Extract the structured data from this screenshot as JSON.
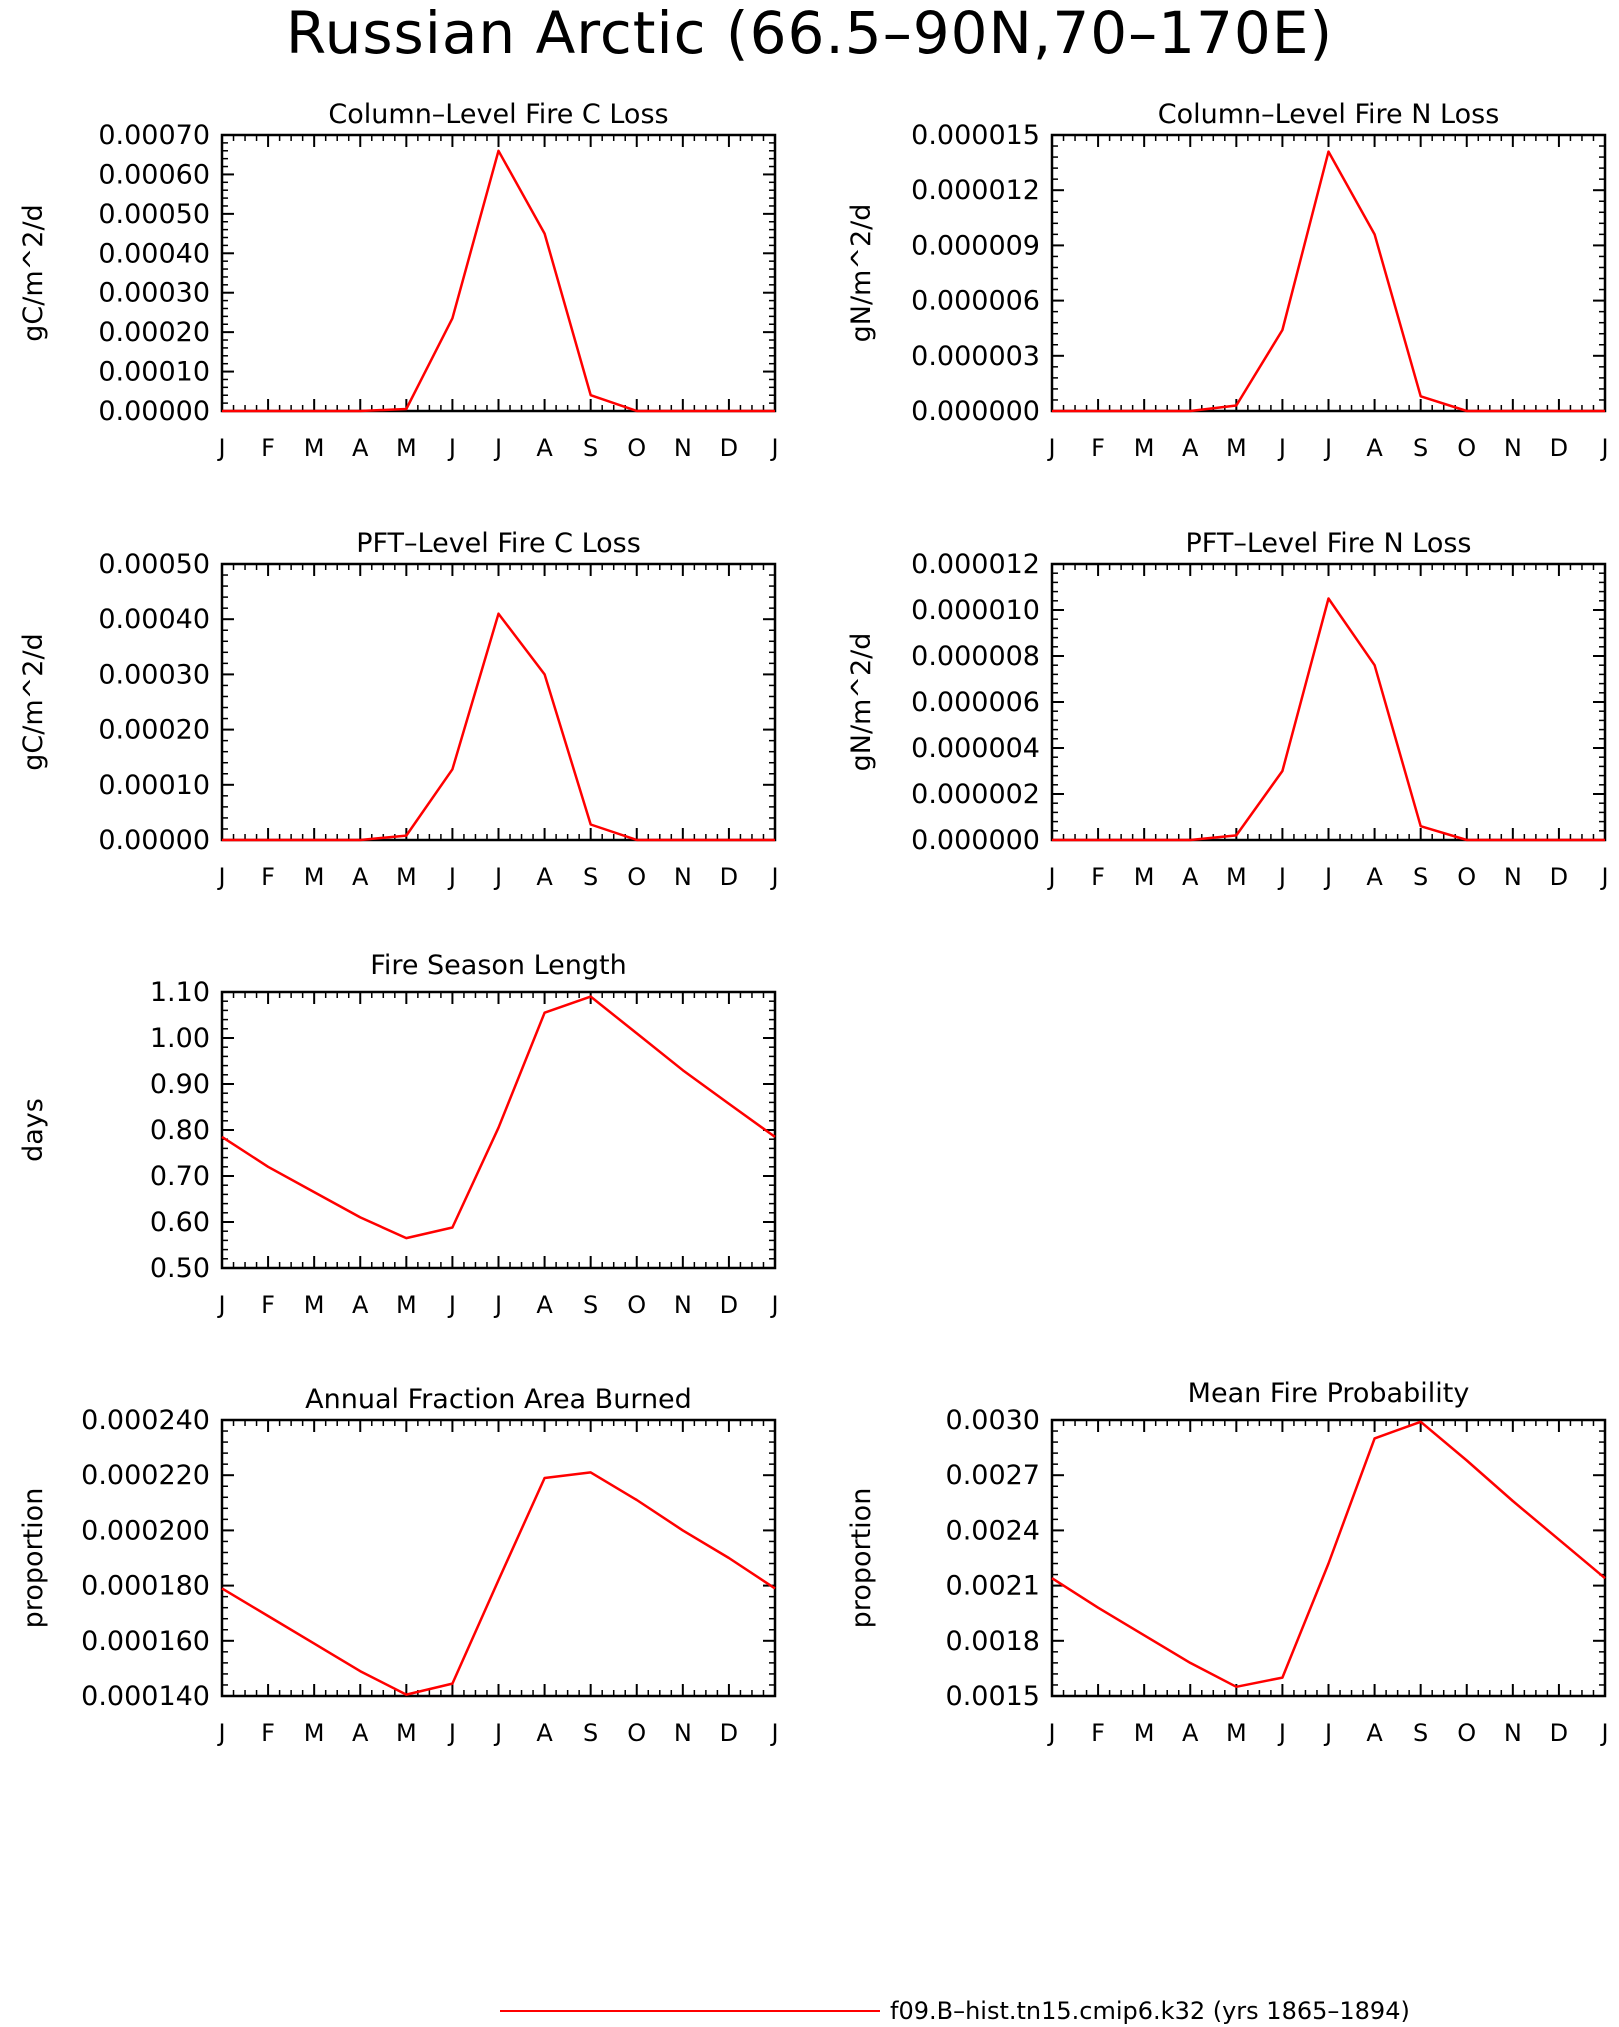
{
  "title": "Russian Arctic (66.5–90N,70–170E)",
  "legend": {
    "label": "f09.B–hist.tn15.cmip6.k32 (yrs 1865–1894)",
    "color": "#ff0000"
  },
  "chart_data": [
    {
      "type": "line",
      "title": "Column–Level Fire C Loss",
      "ylabel": "gC/m^2/d",
      "categories": [
        "J",
        "F",
        "M",
        "A",
        "M",
        "J",
        "J",
        "A",
        "S",
        "O",
        "N",
        "D",
        "J"
      ],
      "yticks": [
        "0.00000",
        "0.00010",
        "0.00020",
        "0.00030",
        "0.00040",
        "0.00050",
        "0.00060",
        "0.00070"
      ],
      "ylim": [
        0,
        0.0007
      ],
      "series": [
        {
          "color": "#ff0000",
          "values": [
            0,
            0,
            0,
            0,
            5e-06,
            0.000235,
            0.00066,
            0.00045,
            4e-05,
            0,
            0,
            0,
            0
          ]
        }
      ]
    },
    {
      "type": "line",
      "title": "Column–Level Fire N Loss",
      "ylabel": "gN/m^2/d",
      "categories": [
        "J",
        "F",
        "M",
        "A",
        "M",
        "J",
        "J",
        "A",
        "S",
        "O",
        "N",
        "D",
        "J"
      ],
      "yticks": [
        "0.000000",
        "0.000003",
        "0.000006",
        "0.000009",
        "0.000012",
        "0.000015"
      ],
      "ylim": [
        0,
        1.5e-05
      ],
      "series": [
        {
          "color": "#ff0000",
          "values": [
            0,
            0,
            0,
            0,
            3e-07,
            4.4e-06,
            1.41e-05,
            9.6e-06,
            8e-07,
            0,
            0,
            0,
            0
          ]
        }
      ]
    },
    {
      "type": "line",
      "title": "PFT–Level Fire C Loss",
      "ylabel": "gC/m^2/d",
      "categories": [
        "J",
        "F",
        "M",
        "A",
        "M",
        "J",
        "J",
        "A",
        "S",
        "O",
        "N",
        "D",
        "J"
      ],
      "yticks": [
        "0.00000",
        "0.00010",
        "0.00020",
        "0.00030",
        "0.00040",
        "0.00050"
      ],
      "ylim": [
        0,
        0.0005
      ],
      "series": [
        {
          "color": "#ff0000",
          "values": [
            0,
            0,
            0,
            0,
            8e-06,
            0.000128,
            0.00041,
            0.0003,
            2.8e-05,
            0,
            0,
            0,
            0
          ]
        }
      ]
    },
    {
      "type": "line",
      "title": "PFT–Level Fire N Loss",
      "ylabel": "gN/m^2/d",
      "categories": [
        "J",
        "F",
        "M",
        "A",
        "M",
        "J",
        "J",
        "A",
        "S",
        "O",
        "N",
        "D",
        "J"
      ],
      "yticks": [
        "0.000000",
        "0.000002",
        "0.000004",
        "0.000006",
        "0.000008",
        "0.000010",
        "0.000012"
      ],
      "ylim": [
        0,
        1.2e-05
      ],
      "series": [
        {
          "color": "#ff0000",
          "values": [
            0,
            0,
            0,
            0,
            2e-07,
            3e-06,
            1.05e-05,
            7.6e-06,
            6e-07,
            0,
            0,
            0,
            0
          ]
        }
      ]
    },
    {
      "type": "line",
      "title": "Fire Season Length",
      "ylabel": "days",
      "categories": [
        "J",
        "F",
        "M",
        "A",
        "M",
        "J",
        "J",
        "A",
        "S",
        "O",
        "N",
        "D",
        "J"
      ],
      "yticks": [
        "0.50",
        "0.60",
        "0.70",
        "0.80",
        "0.90",
        "1.00",
        "1.10"
      ],
      "ylim": [
        0.5,
        1.1
      ],
      "series": [
        {
          "color": "#ff0000",
          "values": [
            0.785,
            0.72,
            0.665,
            0.61,
            0.565,
            0.588,
            0.805,
            1.055,
            1.09,
            1.01,
            0.93,
            0.857,
            0.785
          ]
        }
      ]
    },
    {
      "type": "line",
      "title": "Annual Fraction Area Burned",
      "ylabel": "proportion",
      "categories": [
        "J",
        "F",
        "M",
        "A",
        "M",
        "J",
        "J",
        "A",
        "S",
        "O",
        "N",
        "D",
        "J"
      ],
      "yticks": [
        "0.000140",
        "0.000160",
        "0.000180",
        "0.000200",
        "0.000220",
        "0.000240"
      ],
      "ylim": [
        0.00014,
        0.00024
      ],
      "series": [
        {
          "color": "#ff0000",
          "values": [
            0.000179,
            0.000169,
            0.000159,
            0.000149,
            0.0001405,
            0.0001445,
            0.000182,
            0.000219,
            0.000221,
            0.000211,
            0.0002,
            0.00019,
            0.000179
          ]
        }
      ]
    },
    {
      "type": "line",
      "title": "Mean Fire Probability",
      "ylabel": "proportion",
      "categories": [
        "J",
        "F",
        "M",
        "A",
        "M",
        "J",
        "J",
        "A",
        "S",
        "O",
        "N",
        "D",
        "J"
      ],
      "yticks": [
        "0.0015",
        "0.0018",
        "0.0021",
        "0.0024",
        "0.0027",
        "0.0030"
      ],
      "ylim": [
        0.0015,
        0.003
      ],
      "series": [
        {
          "color": "#ff0000",
          "values": [
            0.00214,
            0.00198,
            0.00183,
            0.00168,
            0.00155,
            0.0016,
            0.00222,
            0.0029,
            0.00299,
            0.00278,
            0.00256,
            0.00235,
            0.00214
          ]
        }
      ]
    }
  ]
}
